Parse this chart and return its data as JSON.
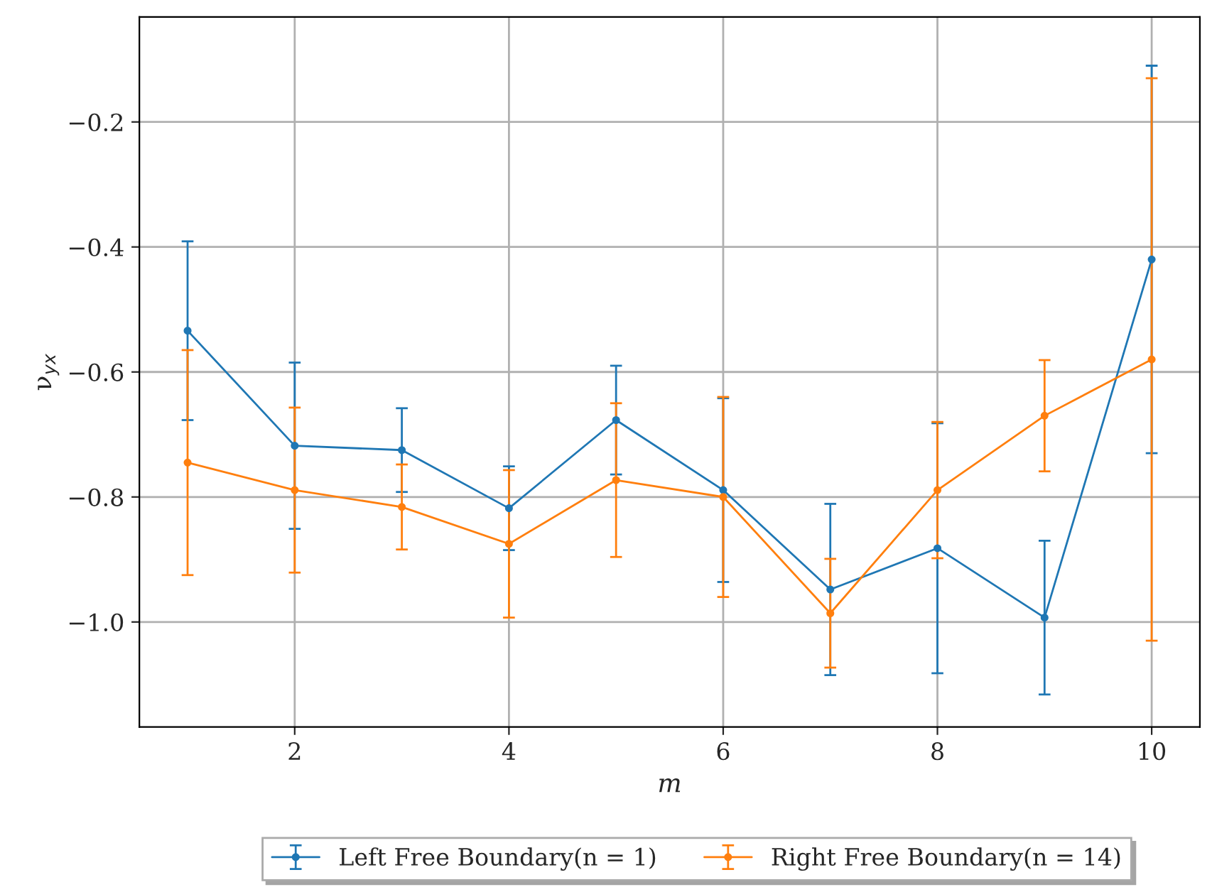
{
  "chart_data": {
    "type": "line",
    "xlabel": "m",
    "ylabel": "ν$_{yx}$",
    "x": [
      1,
      2,
      3,
      4,
      5,
      6,
      7,
      8,
      9,
      10
    ],
    "series": [
      {
        "name": "Left Free Boundary(n = 1)",
        "color": "#1f77b4",
        "values": [
          -0.534,
          -0.718,
          -0.725,
          -0.818,
          -0.677,
          -0.789,
          -0.948,
          -0.882,
          -0.993,
          -0.42
        ],
        "errors": [
          0.143,
          0.133,
          0.067,
          0.067,
          0.087,
          0.147,
          0.137,
          0.2,
          0.123,
          0.31
        ]
      },
      {
        "name": "Right Free Boundary(n = 14)",
        "color": "#ff7f0e",
        "values": [
          -0.745,
          -0.789,
          -0.816,
          -0.875,
          -0.773,
          -0.8,
          -0.986,
          -0.789,
          -0.67,
          -0.58
        ],
        "errors": [
          0.18,
          0.132,
          0.068,
          0.118,
          0.123,
          0.16,
          0.087,
          0.109,
          0.089,
          0.45
        ]
      }
    ],
    "xlim": [
      0.55,
      10.45
    ],
    "ylim": [
      -1.168,
      -0.032
    ],
    "xticks": [
      2,
      4,
      6,
      8,
      10
    ],
    "yticks": [
      {
        "value": -1.0,
        "label": "−1.0"
      },
      {
        "value": -0.8,
        "label": "−0.8"
      },
      {
        "value": -0.6,
        "label": "−0.6"
      },
      {
        "value": -0.4,
        "label": "−0.4"
      },
      {
        "value": -0.2,
        "label": "−0.2"
      }
    ],
    "grid": true,
    "legend": "bottom",
    "marker": "circle",
    "line_style": "solid"
  }
}
